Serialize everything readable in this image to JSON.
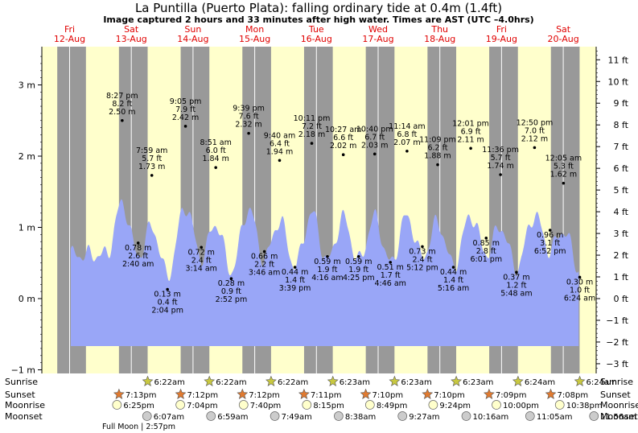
{
  "chart_data": {
    "type": "area",
    "title": "La Puntilla (Puerto Plata): falling  ordinary tide at 0.4m (1.4ft)",
    "subtitle": "Image captured 2 hours and 33 minutes after high water. Times are AST (UTC –4.0hrs)",
    "colors": {
      "background_night": "#999999",
      "background_day": "#ffffcc",
      "tide_fill": "#99a6f7",
      "day_label": "#e00000",
      "grid_line": "#ffffff"
    },
    "days": [
      {
        "weekday": "Fri",
        "date": "12-Aug"
      },
      {
        "weekday": "Sat",
        "date": "13-Aug"
      },
      {
        "weekday": "Sun",
        "date": "14-Aug"
      },
      {
        "weekday": "Mon",
        "date": "15-Aug"
      },
      {
        "weekday": "Tue",
        "date": "16-Aug"
      },
      {
        "weekday": "Wed",
        "date": "17-Aug"
      },
      {
        "weekday": "Thu",
        "date": "18-Aug"
      },
      {
        "weekday": "Fri",
        "date": "19-Aug"
      },
      {
        "weekday": "Sat",
        "date": "20-Aug"
      }
    ],
    "y_left": {
      "unit": "m",
      "ticks": [
        {
          "v": -1,
          "label": "−1 m"
        },
        {
          "v": 0,
          "label": "0 m"
        },
        {
          "v": 1,
          "label": "1 m"
        },
        {
          "v": 2,
          "label": "2 m"
        },
        {
          "v": 3,
          "label": "3 m"
        }
      ]
    },
    "y_right": {
      "unit": "ft",
      "ticks": [
        {
          "v": -3,
          "label": "−3 ft"
        },
        {
          "v": -2,
          "label": "−2 ft"
        },
        {
          "v": -1,
          "label": "−1 ft"
        },
        {
          "v": 0,
          "label": "0 ft"
        },
        {
          "v": 1,
          "label": "1 ft"
        },
        {
          "v": 2,
          "label": "2 ft"
        },
        {
          "v": 3,
          "label": "3 ft"
        },
        {
          "v": 4,
          "label": "4 ft"
        },
        {
          "v": 5,
          "label": "5 ft"
        },
        {
          "v": 6,
          "label": "6 ft"
        },
        {
          "v": 7,
          "label": "7 ft"
        },
        {
          "v": 8,
          "label": "8 ft"
        },
        {
          "v": 9,
          "label": "9 ft"
        },
        {
          "v": 10,
          "label": "10 ft"
        },
        {
          "v": 11,
          "label": "11 ft"
        }
      ]
    },
    "tides": [
      {
        "type": "high",
        "time": "8:27 pm",
        "ft": "8.2 ft",
        "m": "2.50 m",
        "value": 2.5
      },
      {
        "type": "low",
        "time": "2:40 am",
        "ft": "2.6 ft",
        "m": "0.78 m",
        "value": 0.78
      },
      {
        "type": "high",
        "time": "7:59 am",
        "ft": "5.7 ft",
        "m": "1.73 m",
        "value": 1.73
      },
      {
        "type": "low",
        "time": "2:04 pm",
        "ft": "0.4 ft",
        "m": "0.13 m",
        "value": 0.13
      },
      {
        "type": "high",
        "time": "9:05 pm",
        "ft": "7.9 ft",
        "m": "2.42 m",
        "value": 2.42
      },
      {
        "type": "low",
        "time": "3:14 am",
        "ft": "2.4 ft",
        "m": "0.72 m",
        "value": 0.72
      },
      {
        "type": "high",
        "time": "8:51 am",
        "ft": "6.0 ft",
        "m": "1.84 m",
        "value": 1.84
      },
      {
        "type": "low",
        "time": "2:52 pm",
        "ft": "0.9 ft",
        "m": "0.28 m",
        "value": 0.28
      },
      {
        "type": "high",
        "time": "9:39 pm",
        "ft": "7.6 ft",
        "m": "2.32 m",
        "value": 2.32
      },
      {
        "type": "low",
        "time": "3:46 am",
        "ft": "2.2 ft",
        "m": "0.66 m",
        "value": 0.66
      },
      {
        "type": "high",
        "time": "9:40 am",
        "ft": "6.4 ft",
        "m": "1.94 m",
        "value": 1.94
      },
      {
        "type": "low",
        "time": "3:39 pm",
        "ft": "1.4 ft",
        "m": "0.44 m",
        "value": 0.44
      },
      {
        "type": "high",
        "time": "10:11 pm",
        "ft": "7.2 ft",
        "m": "2.18 m",
        "value": 2.18
      },
      {
        "type": "low",
        "time": "4:16 am",
        "ft": "1.9 ft",
        "m": "0.59 m",
        "value": 0.59
      },
      {
        "type": "high",
        "time": "10:27 am",
        "ft": "6.6 ft",
        "m": "2.02 m",
        "value": 2.02
      },
      {
        "type": "low",
        "time": "4:25 pm",
        "ft": "1.9 ft",
        "m": "0.59 m",
        "value": 0.59
      },
      {
        "type": "high",
        "time": "10:40 pm",
        "ft": "6.7 ft",
        "m": "2.03 m",
        "value": 2.03
      },
      {
        "type": "low",
        "time": "4:46 am",
        "ft": "1.7 ft",
        "m": "0.51 m",
        "value": 0.51
      },
      {
        "type": "high",
        "time": "11:14 am",
        "ft": "6.8 ft",
        "m": "2.07 m",
        "value": 2.07
      },
      {
        "type": "low",
        "time": "5:12 pm",
        "ft": "2.4 ft",
        "m": "0.73 m",
        "value": 0.73
      },
      {
        "type": "high",
        "time": "11:09 pm",
        "ft": "6.2 ft",
        "m": "1.88 m",
        "value": 1.88
      },
      {
        "type": "low",
        "time": "5:16 am",
        "ft": "1.4 ft",
        "m": "0.44 m",
        "value": 0.44
      },
      {
        "type": "high",
        "time": "12:01 pm",
        "ft": "6.9 ft",
        "m": "2.11 m",
        "value": 2.11
      },
      {
        "type": "low",
        "time": "6:01 pm",
        "ft": "2.8 ft",
        "m": "0.85 m",
        "value": 0.85
      },
      {
        "type": "high",
        "time": "11:36 pm",
        "ft": "5.7 ft",
        "m": "1.74 m",
        "value": 1.74
      },
      {
        "type": "low",
        "time": "5:48 am",
        "ft": "1.2 ft",
        "m": "0.37 m",
        "value": 0.37
      },
      {
        "type": "high",
        "time": "12:50 pm",
        "ft": "7.0 ft",
        "m": "2.12 m",
        "value": 2.12
      },
      {
        "type": "low",
        "time": "6:52 pm",
        "ft": "3.1 ft",
        "m": "0.96 m",
        "value": 0.96
      },
      {
        "type": "high",
        "time": "12:05 am",
        "ft": "5.3 ft",
        "m": "1.62 m",
        "value": 1.62
      },
      {
        "type": "low",
        "time": "6:24 am",
        "ft": "1.0 ft",
        "m": "0.30 m",
        "value": 0.3
      }
    ],
    "current_level_m": 0.4,
    "astro": {
      "row_labels": {
        "sunrise": "Sunrise",
        "sunset": "Sunset",
        "moonrise": "Moonrise",
        "moonset": "Moonset"
      },
      "sunrise": [
        "6:22am",
        "6:22am",
        "6:22am",
        "6:23am",
        "6:23am",
        "6:23am",
        "6:24am",
        "6:24am"
      ],
      "sunset": [
        "7:13pm",
        "7:12pm",
        "7:12pm",
        "7:11pm",
        "7:10pm",
        "7:10pm",
        "7:09pm",
        "7:08pm"
      ],
      "moonrise": [
        "6:25pm",
        "7:04pm",
        "7:40pm",
        "8:15pm",
        "8:49pm",
        "9:24pm",
        "10:00pm",
        "10:38pm"
      ],
      "moonset": [
        "6:07am",
        "6:59am",
        "7:49am",
        "8:38am",
        "9:27am",
        "10:16am",
        "11:05am",
        "11:56am"
      ],
      "moon_phase_note": "Full Moon | 2:57pm"
    }
  }
}
